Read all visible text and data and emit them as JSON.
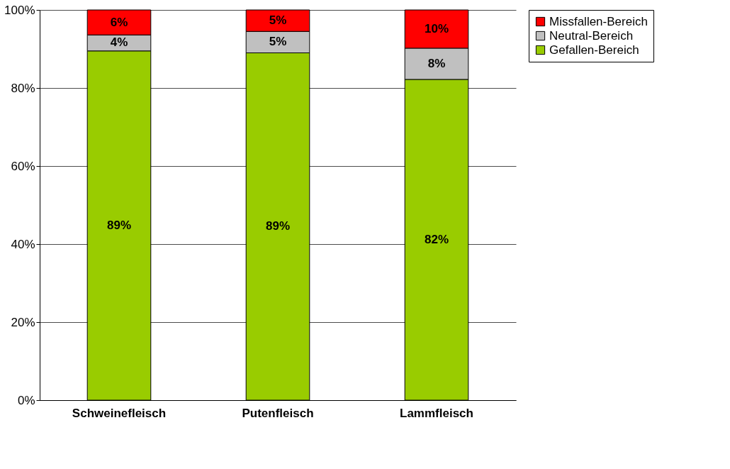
{
  "chart_data": {
    "type": "bar",
    "stacked": true,
    "categories": [
      "Schweinefleisch",
      "Putenfleisch",
      "Lammfleisch"
    ],
    "series": [
      {
        "name": "Gefallen-Bereich",
        "color": "#99cc00",
        "values": [
          89.5,
          89,
          82.2
        ],
        "value_labels": [
          "89%",
          "89%",
          "82%"
        ]
      },
      {
        "name": "Neutral-Bereich",
        "color": "#c0c0c0",
        "values": [
          4.1,
          5.5,
          8
        ],
        "value_labels": [
          "4%",
          "5%",
          "8%"
        ]
      },
      {
        "name": "Missfallen-Bereich",
        "color": "#ff0000",
        "values": [
          6.4,
          5.5,
          9.8
        ],
        "value_labels": [
          "6%",
          "5%",
          "10%"
        ]
      }
    ],
    "ylim": [
      0,
      100
    ],
    "yticks": [
      {
        "value": 0,
        "label": "0%"
      },
      {
        "value": 20,
        "label": "20%"
      },
      {
        "value": 40,
        "label": "40%"
      },
      {
        "value": 60,
        "label": "60%"
      },
      {
        "value": 80,
        "label": "80%"
      },
      {
        "value": 100,
        "label": "100%"
      }
    ],
    "grid": "y",
    "legend": "right"
  }
}
